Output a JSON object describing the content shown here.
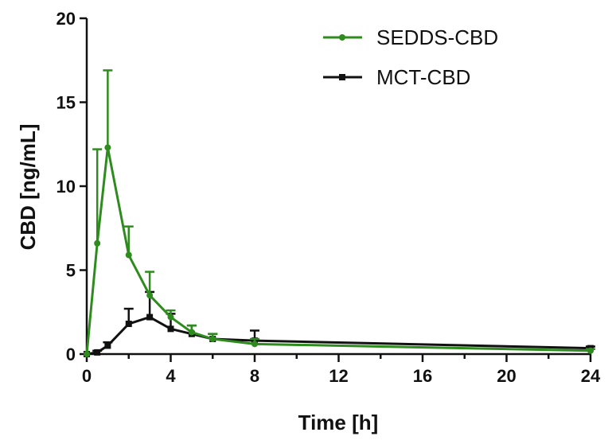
{
  "chart_data": {
    "type": "line",
    "title": "",
    "xlabel": "Time [h]",
    "ylabel": "CBD [ng/mL]",
    "xlim": [
      0,
      24
    ],
    "ylim": [
      0,
      20
    ],
    "xticks": [
      0,
      4,
      8,
      12,
      16,
      20,
      24
    ],
    "yticks": [
      0,
      5,
      10,
      15,
      20
    ],
    "grid": false,
    "legend_position": "top-right",
    "series": [
      {
        "name": "SEDDS-CBD",
        "color": "#2e8b1e",
        "marker": "circle",
        "x": [
          0,
          0.5,
          1,
          2,
          3,
          4,
          5,
          6,
          8,
          24
        ],
        "y": [
          0,
          6.6,
          12.3,
          5.9,
          3.5,
          2.2,
          1.3,
          0.9,
          0.6,
          0.2
        ],
        "error": [
          0,
          5.6,
          4.6,
          1.7,
          1.4,
          0.4,
          0.4,
          0.3,
          0.3,
          0.1
        ]
      },
      {
        "name": "MCT-CBD",
        "color": "#111111",
        "marker": "square",
        "x": [
          0,
          0.5,
          1,
          2,
          3,
          4,
          5,
          6,
          8,
          24
        ],
        "y": [
          0,
          0.1,
          0.5,
          1.8,
          2.2,
          1.5,
          1.2,
          0.9,
          0.8,
          0.35
        ],
        "error": [
          0,
          0.1,
          0.2,
          0.9,
          1.5,
          0.9,
          0.5,
          0.3,
          0.6,
          0.1
        ]
      }
    ]
  }
}
